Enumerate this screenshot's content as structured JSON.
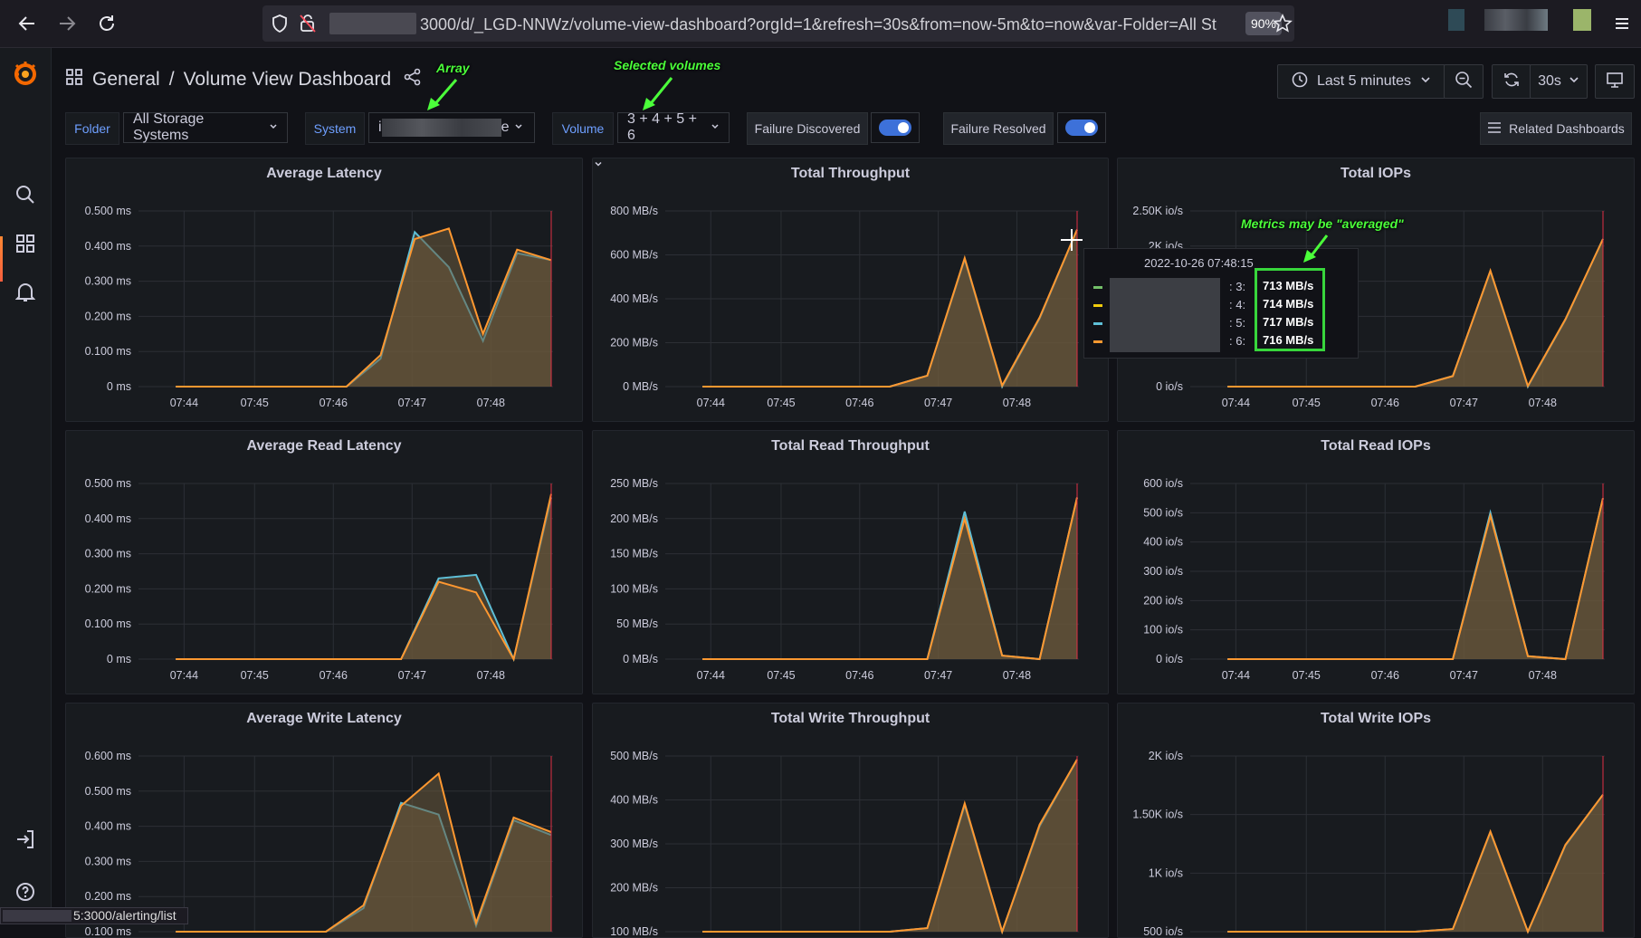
{
  "browser": {
    "url": "3000/d/_LGD-NNWz/volume-view-dashboard?orgId=1&refresh=30s&from=now-5m&to=now&var-Folder=All Stor",
    "zoom": "90%",
    "status_url": "5:3000/alerting/list"
  },
  "header": {
    "section": "General",
    "separator": "/",
    "title": "Volume View Dashboard",
    "time_range": "Last 5 minutes",
    "refresh_interval": "30s"
  },
  "variables": {
    "folder_label": "Folder",
    "folder_value": "All Storage Systems",
    "system_label": "System",
    "system_value_start": "i",
    "system_value_end": "e",
    "volume_label": "Volume",
    "volume_value": "3 + 4 + 5 + 6",
    "failure_discovered": "Failure Discovered",
    "failure_resolved": "Failure Resolved",
    "related": "Related Dashboards"
  },
  "annotations": {
    "array": "Array",
    "selected_volumes": "Selected volumes",
    "metrics_note": "Metrics may be \"averaged\""
  },
  "tooltip": {
    "time": "2022-10-26 07:48:15",
    "rows": [
      {
        "label": ": 3:",
        "value": "713 MB/s",
        "color": "#73bf69"
      },
      {
        "label": ": 4:",
        "value": "714 MB/s",
        "color": "#f2cc0c"
      },
      {
        "label": ": 5:",
        "value": "717 MB/s",
        "color": "#5ebfd7"
      },
      {
        "label": ": 6:",
        "value": "716 MB/s",
        "color": "#ff9830"
      }
    ]
  },
  "colors": {
    "series": [
      "#73bf69",
      "#5ebfd7",
      "#d8a143",
      "#ff9830"
    ],
    "fill": "#6b5a3c",
    "accent": "#3d71d9",
    "now_line": "#e02f44"
  },
  "chart_data": [
    {
      "id": "avg-latency",
      "title": "Average Latency",
      "type": "area",
      "dropdown": false,
      "y_ticks": [
        "0.500 ms",
        "0.400 ms",
        "0.300 ms",
        "0.200 ms",
        "0.100 ms",
        "0 ms"
      ],
      "ylim": [
        0,
        0.5
      ],
      "x_ticks": [
        "07:44",
        "07:45",
        "07:46",
        "07:47",
        "07:48"
      ],
      "series": [
        {
          "values": [
            0,
            0,
            0,
            0,
            0,
            0,
            0.08,
            0.44,
            0.34,
            0.13,
            0.38,
            0.36
          ]
        },
        {
          "values": [
            0,
            0,
            0,
            0,
            0,
            0,
            0.09,
            0.42,
            0.45,
            0.15,
            0.39,
            0.36
          ]
        }
      ]
    },
    {
      "id": "total-throughput",
      "title": "Total Throughput",
      "type": "area",
      "dropdown": true,
      "y_ticks": [
        "800 MB/s",
        "600 MB/s",
        "400 MB/s",
        "200 MB/s",
        "0 MB/s"
      ],
      "ylim": [
        0,
        800
      ],
      "x_ticks": [
        "07:44",
        "07:45",
        "07:46",
        "07:47",
        "07:48"
      ],
      "series": [
        {
          "values": [
            0,
            0,
            0,
            0,
            0,
            0,
            50,
            580,
            0,
            310,
            715
          ]
        },
        {
          "values": [
            0,
            0,
            0,
            0,
            0,
            0,
            50,
            585,
            5,
            315,
            715
          ]
        }
      ]
    },
    {
      "id": "total-iops",
      "title": "Total IOPs",
      "type": "area",
      "dropdown": false,
      "y_ticks": [
        "2.50K io/s",
        "2K io/s",
        "",
        "",
        "",
        "0 io/s"
      ],
      "ylim": [
        0,
        2500
      ],
      "x_ticks": [
        "07:44",
        "07:45",
        "07:46",
        "07:47",
        "07:48"
      ],
      "series": [
        {
          "values": [
            0,
            0,
            0,
            0,
            0,
            0,
            150,
            1640,
            0,
            950,
            2100
          ]
        },
        {
          "values": [
            0,
            0,
            0,
            0,
            0,
            0,
            150,
            1650,
            10,
            960,
            2100
          ]
        }
      ]
    },
    {
      "id": "avg-read-latency",
      "title": "Average Read Latency",
      "type": "area",
      "dropdown": false,
      "y_ticks": [
        "0.500 ms",
        "0.400 ms",
        "0.300 ms",
        "0.200 ms",
        "0.100 ms",
        "0 ms"
      ],
      "ylim": [
        0,
        0.5
      ],
      "x_ticks": [
        "07:44",
        "07:45",
        "07:46",
        "07:47",
        "07:48"
      ],
      "series": [
        {
          "values": [
            0,
            0,
            0,
            0,
            0,
            0,
            0,
            0.23,
            0.24,
            0,
            0.46
          ]
        },
        {
          "values": [
            0,
            0,
            0,
            0,
            0,
            0,
            0,
            0.22,
            0.19,
            0,
            0.47
          ]
        }
      ]
    },
    {
      "id": "total-read-throughput",
      "title": "Total Read Throughput",
      "type": "area",
      "dropdown": false,
      "y_ticks": [
        "250 MB/s",
        "200 MB/s",
        "150 MB/s",
        "100 MB/s",
        "50 MB/s",
        "0 MB/s"
      ],
      "ylim": [
        0,
        250
      ],
      "x_ticks": [
        "07:44",
        "07:45",
        "07:46",
        "07:47",
        "07:48"
      ],
      "series": [
        {
          "values": [
            0,
            0,
            0,
            0,
            0,
            0,
            0,
            210,
            5,
            0,
            230
          ]
        },
        {
          "values": [
            0,
            0,
            0,
            0,
            0,
            0,
            0,
            200,
            5,
            0,
            230
          ]
        }
      ]
    },
    {
      "id": "total-read-iops",
      "title": "Total Read IOPs",
      "type": "area",
      "dropdown": false,
      "y_ticks": [
        "600 io/s",
        "500 io/s",
        "400 io/s",
        "300 io/s",
        "200 io/s",
        "100 io/s",
        "0 io/s"
      ],
      "ylim": [
        0,
        600
      ],
      "x_ticks": [
        "07:44",
        "07:45",
        "07:46",
        "07:47",
        "07:48"
      ],
      "series": [
        {
          "values": [
            0,
            0,
            0,
            0,
            0,
            0,
            0,
            500,
            10,
            0,
            550
          ]
        },
        {
          "values": [
            0,
            0,
            0,
            0,
            0,
            0,
            0,
            490,
            10,
            0,
            550
          ]
        }
      ]
    },
    {
      "id": "avg-write-latency",
      "title": "Average Write Latency",
      "type": "area",
      "dropdown": false,
      "y_ticks": [
        "0.600 ms",
        "0.500 ms",
        "0.400 ms",
        "0.300 ms",
        "0.200 ms",
        "0.100 ms"
      ],
      "ylim": [
        0,
        0.6
      ],
      "x_ticks": [],
      "series": [
        {
          "values": [
            0,
            0,
            0,
            0,
            0,
            0.08,
            0.44,
            0.4,
            0.02,
            0.38,
            0.33
          ]
        },
        {
          "values": [
            0,
            0,
            0,
            0,
            0,
            0.09,
            0.43,
            0.54,
            0.03,
            0.39,
            0.34
          ]
        }
      ]
    },
    {
      "id": "total-write-throughput",
      "title": "Total Write Throughput",
      "type": "area",
      "dropdown": false,
      "y_ticks": [
        "500 MB/s",
        "400 MB/s",
        "300 MB/s",
        "200 MB/s",
        "100 MB/s"
      ],
      "ylim": [
        0,
        500
      ],
      "x_ticks": [],
      "series": [
        {
          "values": [
            0,
            0,
            0,
            0,
            0,
            0,
            10,
            360,
            0,
            300,
            490
          ]
        },
        {
          "values": [
            0,
            0,
            0,
            0,
            0,
            0,
            10,
            365,
            0,
            305,
            490
          ]
        }
      ]
    },
    {
      "id": "total-write-iops",
      "title": "Total Write IOPs",
      "type": "area",
      "dropdown": false,
      "y_ticks": [
        "2K io/s",
        "1.50K io/s",
        "1K io/s",
        "500 io/s"
      ],
      "ylim": [
        0,
        2000
      ],
      "x_ticks": [],
      "series": [
        {
          "values": [
            0,
            0,
            0,
            0,
            0,
            0,
            30,
            1130,
            0,
            980,
            1560
          ]
        },
        {
          "values": [
            0,
            0,
            0,
            0,
            0,
            0,
            30,
            1140,
            0,
            990,
            1560
          ]
        }
      ]
    }
  ]
}
